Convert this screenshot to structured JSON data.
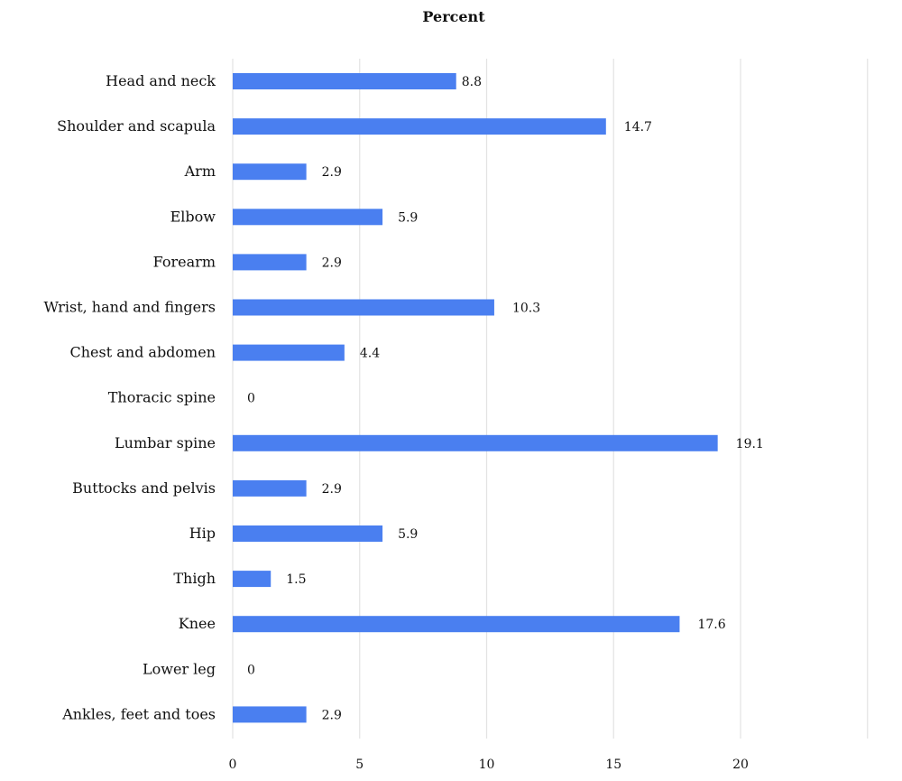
{
  "chart_data": {
    "type": "bar",
    "orientation": "horizontal",
    "title": "Percent",
    "xlabel": "",
    "ylabel": "",
    "xlim": [
      0,
      25
    ],
    "xticks": [
      0,
      5,
      10,
      15,
      20,
      25
    ],
    "xtick_labels": [
      "0",
      "5",
      "10",
      "15",
      "20",
      ""
    ],
    "grid": "vertical",
    "legend": "none",
    "categories": [
      "Head and neck",
      "Shoulder and scapula",
      "Arm",
      "Elbow",
      "Forearm",
      "Wrist, hand and fingers",
      "Chest and abdomen",
      "Thoracic spine",
      "Lumbar spine",
      "Buttocks and pelvis",
      "Hip",
      "Thigh",
      "Knee",
      "Lower leg",
      "Ankles, feet and toes"
    ],
    "values": [
      8.8,
      14.7,
      2.9,
      5.9,
      2.9,
      10.3,
      4.4,
      0,
      19.1,
      2.9,
      5.9,
      1.5,
      17.6,
      0,
      2.9
    ],
    "value_labels": [
      "8.8",
      "14.7",
      "2.9",
      "5.9",
      "2.9",
      "10.3",
      "4.4",
      "0",
      "19.1",
      "2.9",
      "5.9",
      "1.5",
      "17.6",
      "0",
      "2.9"
    ],
    "colors": {
      "bar": "#4a7ff0",
      "grid": "#e3e3e3",
      "text": "#111111"
    }
  }
}
